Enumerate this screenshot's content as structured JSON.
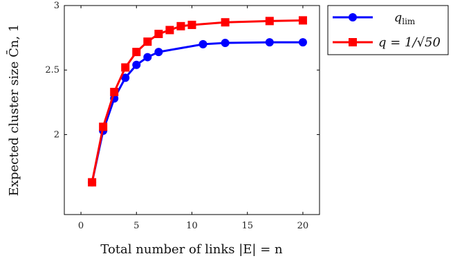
{
  "chart_data": {
    "type": "line",
    "xlabel": "Total number of links |E| = n",
    "ylabel": "Expected cluster size C̄n, 1",
    "xlim": [
      -1.5,
      21.5
    ],
    "ylim": [
      1.38,
      3.0
    ],
    "xticks": [
      0,
      5,
      10,
      15,
      20
    ],
    "yticks": [
      2,
      2.5,
      3
    ],
    "ytick_labels": [
      "2",
      "2.5",
      "3"
    ],
    "legend_position": "top-right outside plot",
    "grid": false,
    "series": [
      {
        "name": "q_lim",
        "color": "#0000ff",
        "marker": "circle",
        "x": [
          1,
          2,
          3,
          4,
          5,
          6,
          7,
          11,
          13,
          17,
          20
        ],
        "y": [
          1.63,
          2.03,
          2.28,
          2.44,
          2.54,
          2.6,
          2.64,
          2.7,
          2.71,
          2.715,
          2.715
        ]
      },
      {
        "name": "q = 1/√50",
        "color": "#ff0000",
        "marker": "square",
        "x": [
          1,
          2,
          3,
          4,
          5,
          6,
          7,
          8,
          9,
          10,
          13,
          17,
          20
        ],
        "y": [
          1.63,
          2.06,
          2.33,
          2.52,
          2.64,
          2.72,
          2.78,
          2.81,
          2.84,
          2.85,
          2.87,
          2.88,
          2.885
        ]
      }
    ]
  },
  "legend": {
    "item1_main": "q",
    "item1_sub": "lim",
    "item2_label": "q = 1/√50"
  }
}
